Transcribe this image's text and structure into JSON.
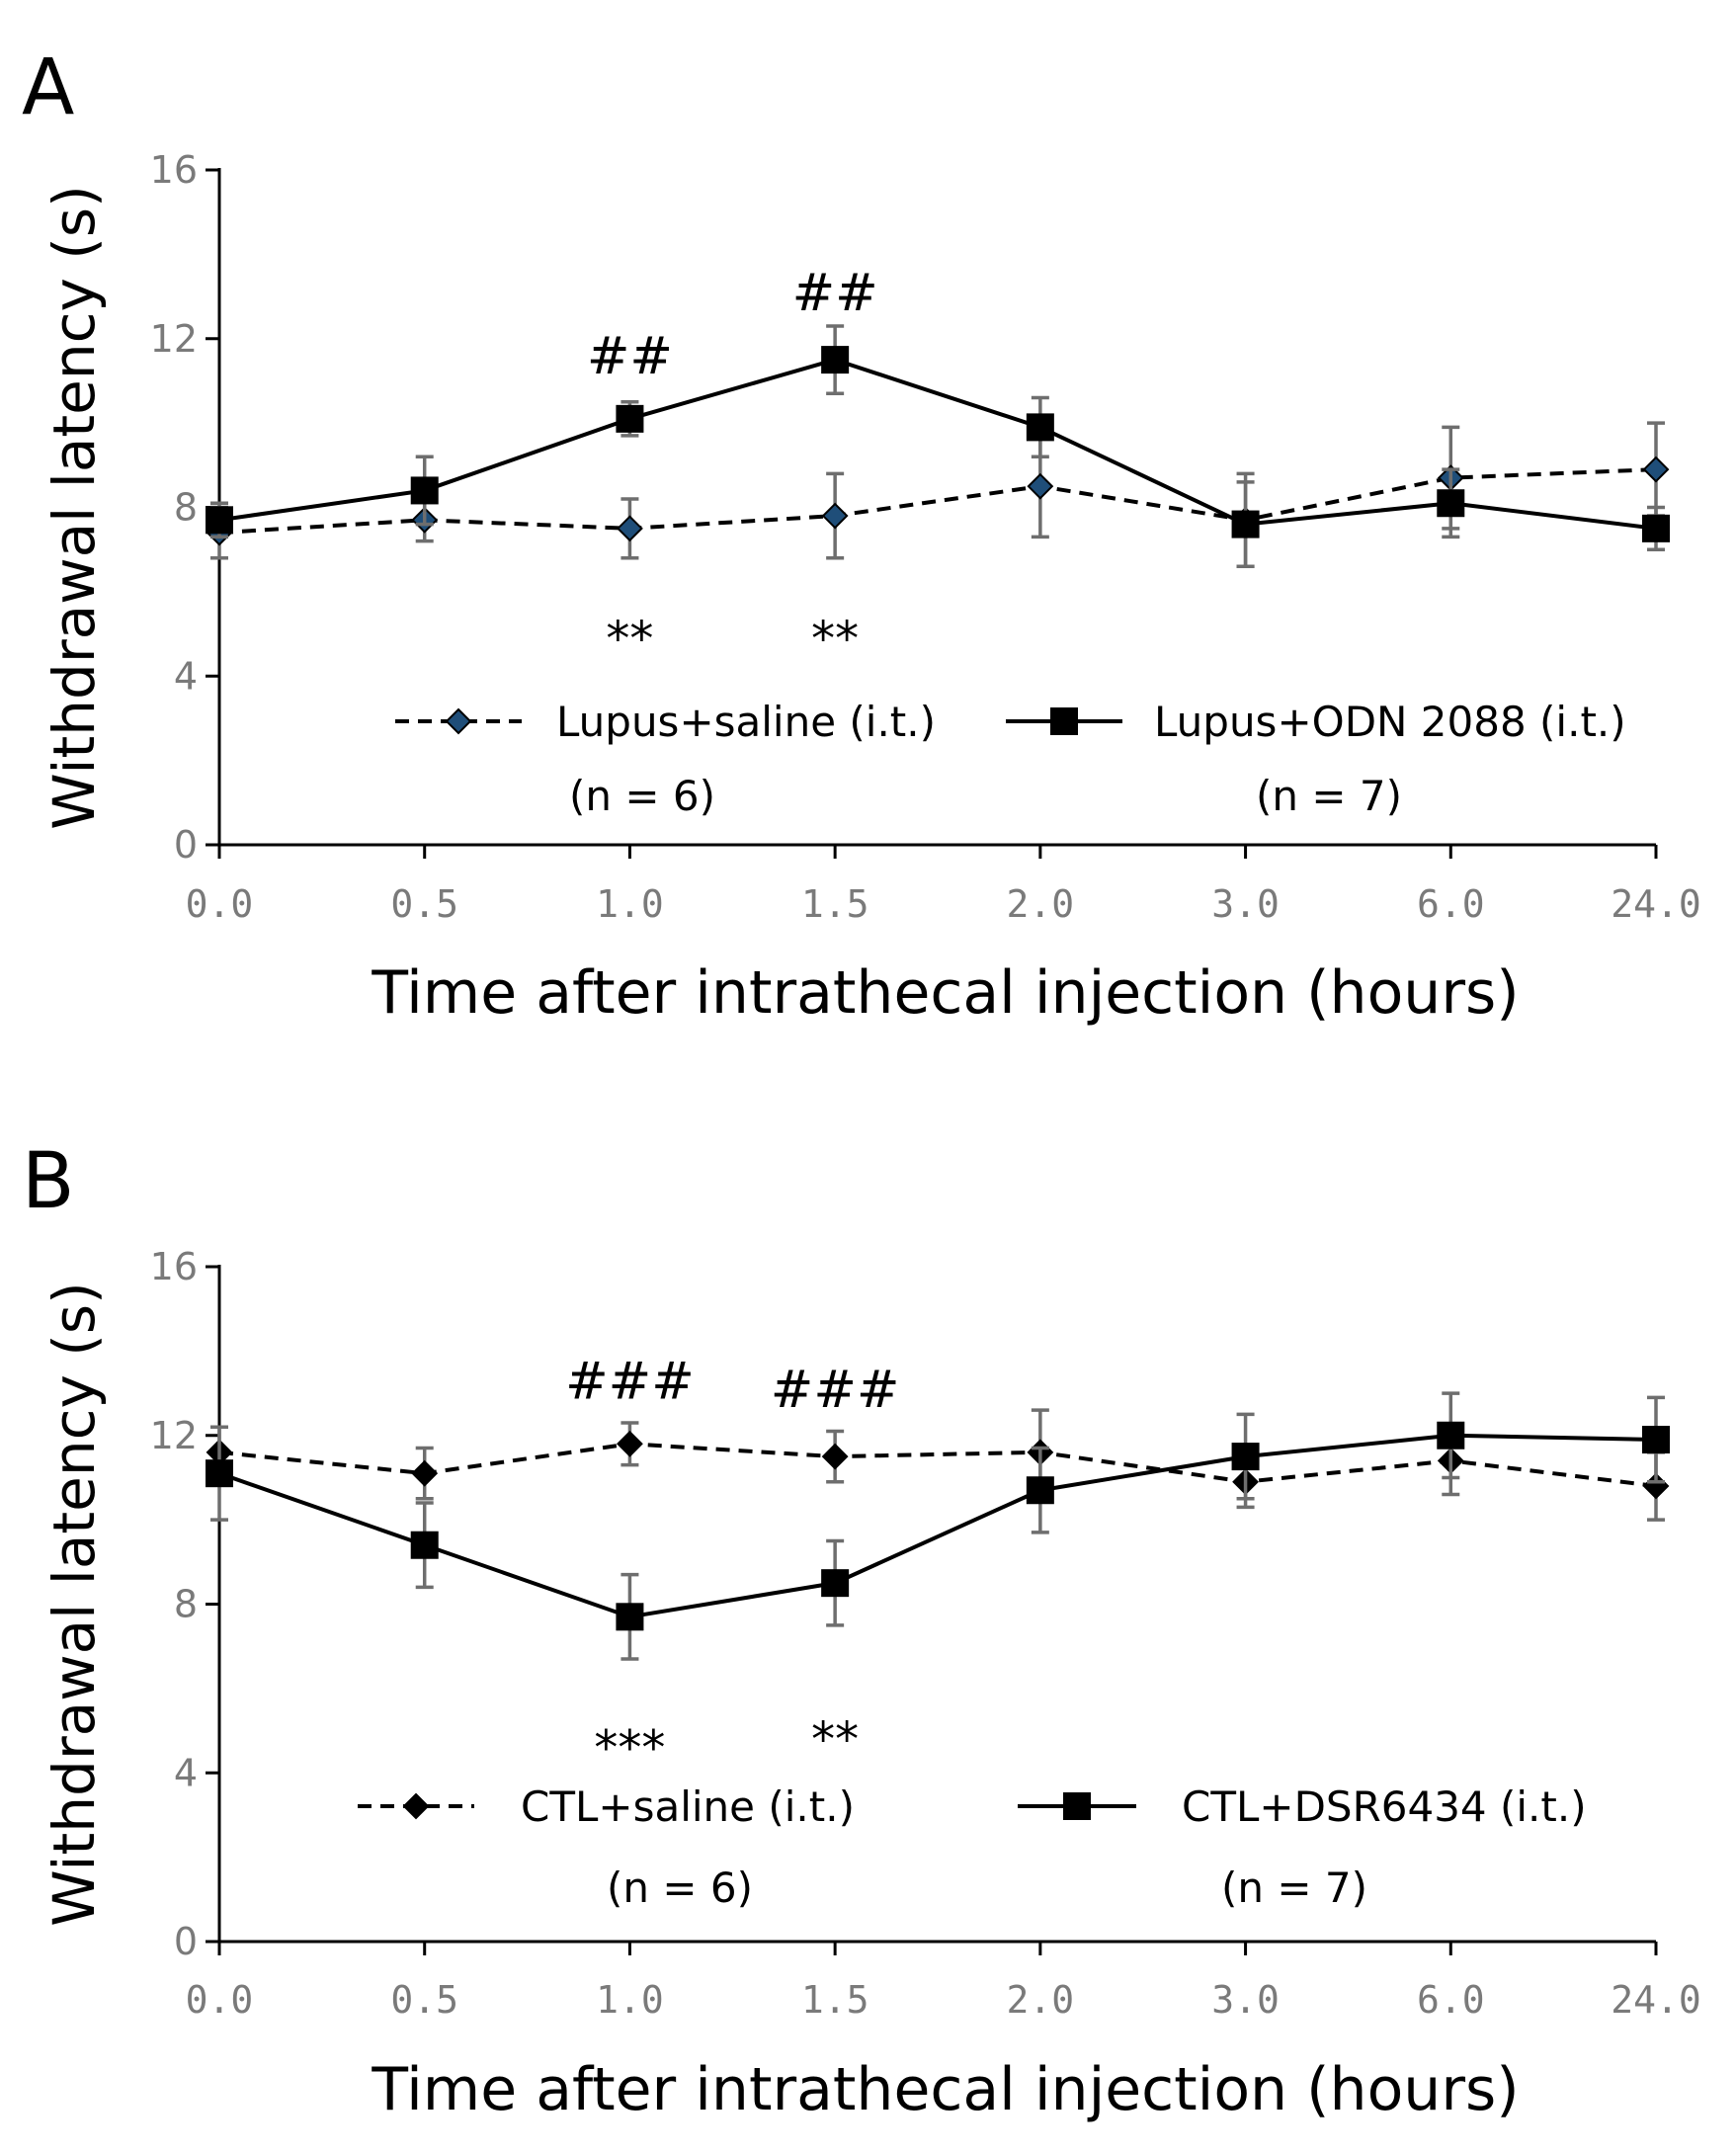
{
  "chart_data": [
    {
      "panel": "A",
      "type": "line",
      "ylabel": "Withdrawal latency (s)",
      "xlabel": "Time after intrathecal injection (hours)",
      "categories": [
        "0.0",
        "0.5",
        "1.0",
        "1.5",
        "2.0",
        "3.0",
        "6.0",
        "24.0"
      ],
      "yticks": [
        "0",
        "4",
        "8",
        "12",
        "16"
      ],
      "ylim": [
        0,
        16
      ],
      "series": [
        {
          "name": "Lupus+saline (i.t.)",
          "n_label": "(n = 6)",
          "line": "dashed",
          "marker": "diamond",
          "marker_color": "#1f4e79",
          "values": [
            7.4,
            7.7,
            7.5,
            7.8,
            8.5,
            7.7,
            8.7,
            8.9
          ],
          "errors": [
            0.6,
            0.5,
            0.7,
            1.0,
            1.2,
            1.1,
            1.2,
            1.1
          ]
        },
        {
          "name": "Lupus+ODN 2088 (i.t.)",
          "n_label": "(n = 7)",
          "line": "solid",
          "marker": "square",
          "marker_color": "#000000",
          "values": [
            7.7,
            8.4,
            10.1,
            11.5,
            9.9,
            7.6,
            8.1,
            7.5
          ],
          "errors": [
            0.4,
            0.8,
            0.4,
            0.8,
            0.7,
            1.0,
            0.8,
            0.5
          ]
        }
      ],
      "annotations": [
        {
          "text": "##",
          "category": "1.0",
          "y": 11.6,
          "style": "hash"
        },
        {
          "text": "##",
          "category": "1.5",
          "y": 13.1,
          "style": "hash"
        },
        {
          "text": "**",
          "category": "1.0",
          "y": 5.3,
          "style": "star"
        },
        {
          "text": "**",
          "category": "1.5",
          "y": 5.3,
          "style": "star"
        }
      ]
    },
    {
      "panel": "B",
      "type": "line",
      "ylabel": "Withdrawal latency (s)",
      "xlabel": "Time after intrathecal injection (hours)",
      "categories": [
        "0.0",
        "0.5",
        "1.0",
        "1.5",
        "2.0",
        "3.0",
        "6.0",
        "24.0"
      ],
      "yticks": [
        "0",
        "4",
        "8",
        "12",
        "16"
      ],
      "ylim": [
        0,
        16
      ],
      "series": [
        {
          "name": "CTL+saline (i.t.)",
          "n_label": "(n = 6)",
          "line": "dashed",
          "marker": "diamond",
          "marker_color": "#000000",
          "values": [
            11.6,
            11.1,
            11.8,
            11.5,
            11.6,
            10.9,
            11.4,
            10.8
          ],
          "errors": [
            0.6,
            0.6,
            0.5,
            0.6,
            1.0,
            0.6,
            0.8,
            0.8
          ]
        },
        {
          "name": "CTL+DSR6434 (i.t.)",
          "n_label": "(n = 7)",
          "line": "solid",
          "marker": "square",
          "marker_color": "#000000",
          "values": [
            11.1,
            9.4,
            7.7,
            8.5,
            10.7,
            11.5,
            12.0,
            11.9
          ],
          "errors": [
            1.1,
            1.0,
            1.0,
            1.0,
            1.0,
            1.0,
            1.0,
            1.0
          ]
        }
      ],
      "annotations": [
        {
          "text": "###",
          "category": "1.0",
          "y": 13.3,
          "style": "hash"
        },
        {
          "text": "###",
          "category": "1.5",
          "y": 13.1,
          "style": "hash"
        },
        {
          "text": "***",
          "category": "1.0",
          "y": 5.0,
          "style": "star"
        },
        {
          "text": "**",
          "category": "1.5",
          "y": 5.2,
          "style": "star"
        }
      ]
    }
  ]
}
